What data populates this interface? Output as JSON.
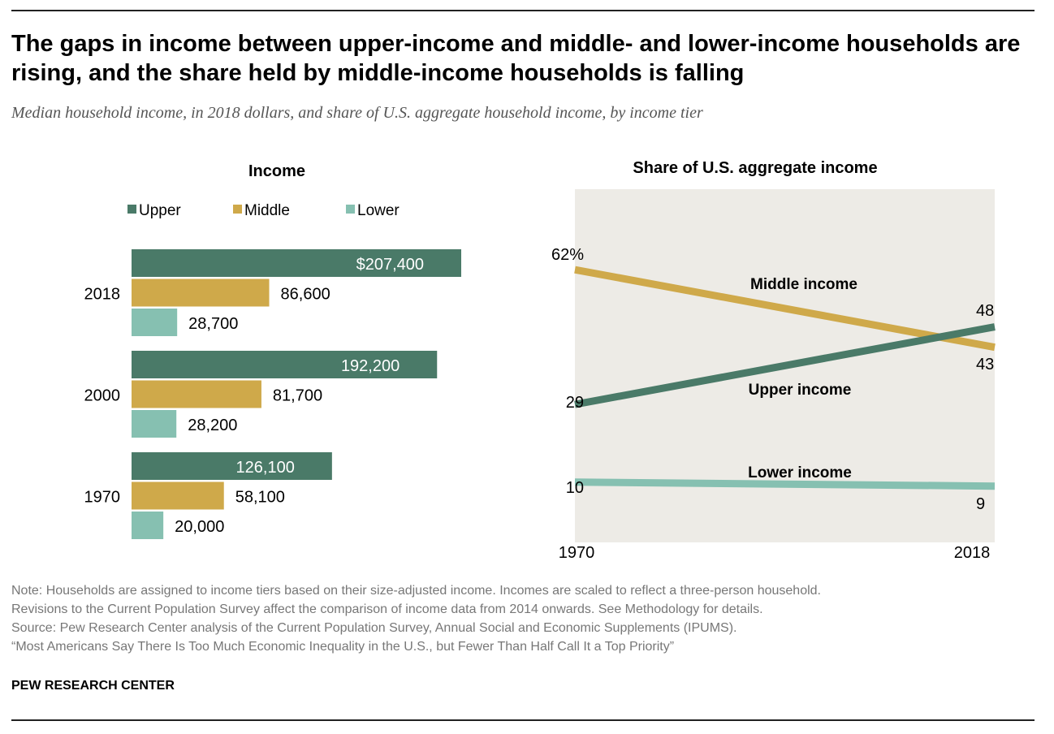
{
  "title": "The gaps in income between upper-income and middle- and lower-income households are rising, and the share held by middle-income households is falling",
  "subtitle": "Median household income, in 2018 dollars, and share of U.S. aggregate household income, by income tier",
  "colors": {
    "upper": "#4a7a68",
    "middle": "#cfa94a",
    "lower": "#86c0b1",
    "panel": "#edebe6"
  },
  "chart_data": [
    {
      "type": "bar",
      "title": "Income",
      "legend": [
        "Upper",
        "Middle",
        "Lower"
      ],
      "categories": [
        "2018",
        "2000",
        "1970"
      ],
      "series": [
        {
          "name": "Upper",
          "values": [
            207400,
            192200,
            126100
          ],
          "labels": [
            "$207,400",
            "192,200",
            "126,100"
          ]
        },
        {
          "name": "Middle",
          "values": [
            86600,
            81700,
            58100
          ],
          "labels": [
            "86,600",
            "81,700",
            "58,100"
          ]
        },
        {
          "name": "Lower",
          "values": [
            28700,
            28200,
            20000
          ],
          "labels": [
            "28,700",
            "28,200",
            "20,000"
          ]
        }
      ]
    },
    {
      "type": "line",
      "title": "Share of U.S. aggregate income",
      "x": [
        "1970",
        "2018"
      ],
      "series": [
        {
          "name": "Middle income",
          "values": [
            62,
            43
          ],
          "labels": [
            "62%",
            "43"
          ]
        },
        {
          "name": "Upper income",
          "values": [
            29,
            48
          ],
          "labels": [
            "29",
            "48"
          ]
        },
        {
          "name": "Lower income",
          "values": [
            10,
            9
          ],
          "labels": [
            "10",
            "9"
          ]
        }
      ]
    }
  ],
  "notes": [
    "Note: Households are assigned to income tiers based on their size-adjusted income. Incomes are scaled to reflect a three-person household.",
    "Revisions to the Current Population Survey affect the comparison of income data from 2014 onwards. See Methodology for details.",
    "Source: Pew Research Center analysis of the Current Population Survey, Annual Social and Economic Supplements (IPUMS).",
    "“Most Americans Say There Is Too Much Economic Inequality in the U.S., but Fewer Than Half Call It a Top Priority”"
  ],
  "source_logo": "PEW RESEARCH CENTER"
}
